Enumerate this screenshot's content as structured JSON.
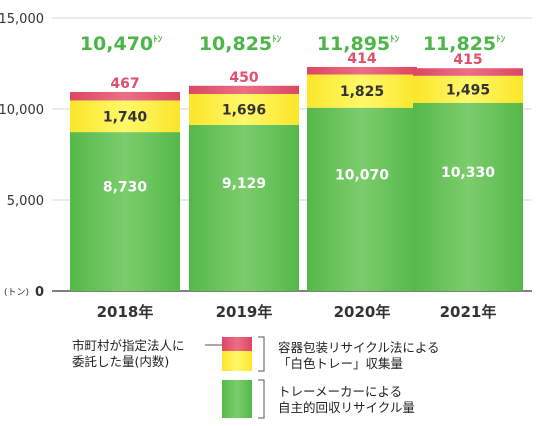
{
  "chart_data": {
    "type": "bar",
    "stacked": true,
    "categories": [
      "2018年",
      "2019年",
      "2020年",
      "2021年"
    ],
    "series": [
      {
        "name": "トレーメーカーによる自主的回収リサイクル量",
        "values": [
          8730,
          9129,
          10070,
          10330
        ],
        "labels": [
          "8,730",
          "9,129",
          "10,070",
          "10,330"
        ]
      },
      {
        "name": "容器包装リサイクル法による「白色トレー」収集量",
        "values": [
          1740,
          1696,
          1825,
          1495
        ],
        "labels": [
          "1,740",
          "1,696",
          "1,825",
          "1,495"
        ]
      },
      {
        "name": "市町村が指定法人に委託した量(内数)",
        "values": [
          467,
          450,
          414,
          415
        ],
        "labels": [
          "467",
          "450",
          "414",
          "415"
        ]
      }
    ],
    "totals": {
      "values": [
        10470,
        10825,
        11895,
        11825
      ],
      "labels": [
        "10,470",
        "10,825",
        "11,895",
        "11,825"
      ],
      "unit": "ﾄﾝ"
    },
    "ylim": [
      0,
      15000
    ],
    "yticks": [
      0,
      5000,
      10000,
      15000
    ],
    "ytick_labels": [
      "0",
      "5,000",
      "10,000",
      "15,000"
    ],
    "yunit": "(トン)",
    "grid": true,
    "colors": {
      "green": "#5cbd50",
      "green_light": "#7ccd6c",
      "yellow": "#fff23a",
      "pink": "#e0506a",
      "total_text": "#4cb648",
      "red_text": "#e0506a",
      "grid": "#d4d4d4"
    },
    "legend": {
      "placement": "bottom",
      "note_lines": [
        "市町村が指定法人に",
        "委託した量(内数)"
      ],
      "upper_lines": [
        "容器包装リサイクル法による",
        "「白色トレー」収集量"
      ],
      "lower_lines": [
        "トレーメーカーによる",
        "自主的回収リサイクル量"
      ]
    }
  }
}
